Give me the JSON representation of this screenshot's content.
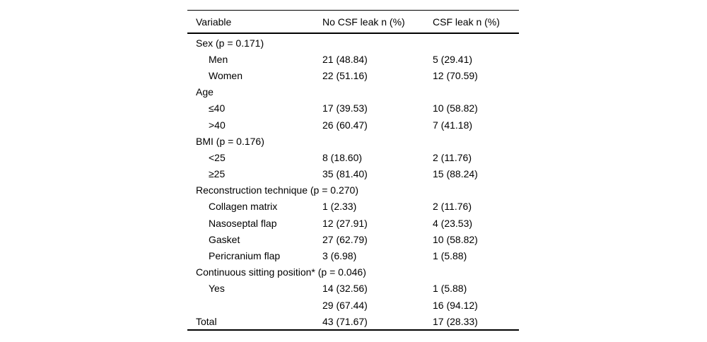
{
  "colors": {
    "background": "#ffffff",
    "text": "#000000",
    "rule": "#000000"
  },
  "table": {
    "columns": [
      "Variable",
      "No CSF leak n (%)",
      "CSF leak n (%)"
    ],
    "rows": [
      {
        "type": "group",
        "label": "Sex (p = 0.171)",
        "no_leak": "",
        "leak": ""
      },
      {
        "type": "sub",
        "label": "Men",
        "no_leak": "21 (48.84)",
        "leak": "5 (29.41)"
      },
      {
        "type": "sub",
        "label": "Women",
        "no_leak": "22 (51.16)",
        "leak": "12 (70.59)"
      },
      {
        "type": "group",
        "label": "Age",
        "no_leak": "",
        "leak": ""
      },
      {
        "type": "sub",
        "label": "≤40",
        "no_leak": "17 (39.53)",
        "leak": "10 (58.82)"
      },
      {
        "type": "sub",
        "label": ">40",
        "no_leak": "26 (60.47)",
        "leak": "7 (41.18)"
      },
      {
        "type": "group",
        "label": "BMI (p = 0.176)",
        "no_leak": "",
        "leak": ""
      },
      {
        "type": "sub",
        "label": "<25",
        "no_leak": "8 (18.60)",
        "leak": "2 (11.76)"
      },
      {
        "type": "sub",
        "label": "≥25",
        "no_leak": "35 (81.40)",
        "leak": "15 (88.24)"
      },
      {
        "type": "group",
        "label": "Reconstruction technique (p = 0.270)",
        "no_leak": "",
        "leak": ""
      },
      {
        "type": "sub",
        "label": "Collagen matrix",
        "no_leak": "1 (2.33)",
        "leak": "2 (11.76)"
      },
      {
        "type": "sub",
        "label": "Nasoseptal flap",
        "no_leak": "12 (27.91)",
        "leak": "4 (23.53)"
      },
      {
        "type": "sub",
        "label": "Gasket",
        "no_leak": "27 (62.79)",
        "leak": "10 (58.82)"
      },
      {
        "type": "sub",
        "label": "Pericranium flap",
        "no_leak": "3 (6.98)",
        "leak": "1 (5.88)"
      },
      {
        "type": "group",
        "label": "Continuous sitting position* (p = 0.046)",
        "no_leak": "",
        "leak": ""
      },
      {
        "type": "sub",
        "label": "Yes",
        "no_leak": "14 (32.56)",
        "leak": "1 (5.88)"
      },
      {
        "type": "sub",
        "label": "",
        "no_leak": "29 (67.44)",
        "leak": "16 (94.12)"
      },
      {
        "type": "group",
        "label": "Total",
        "no_leak": "43 (71.67)",
        "leak": "17 (28.33)"
      }
    ]
  }
}
